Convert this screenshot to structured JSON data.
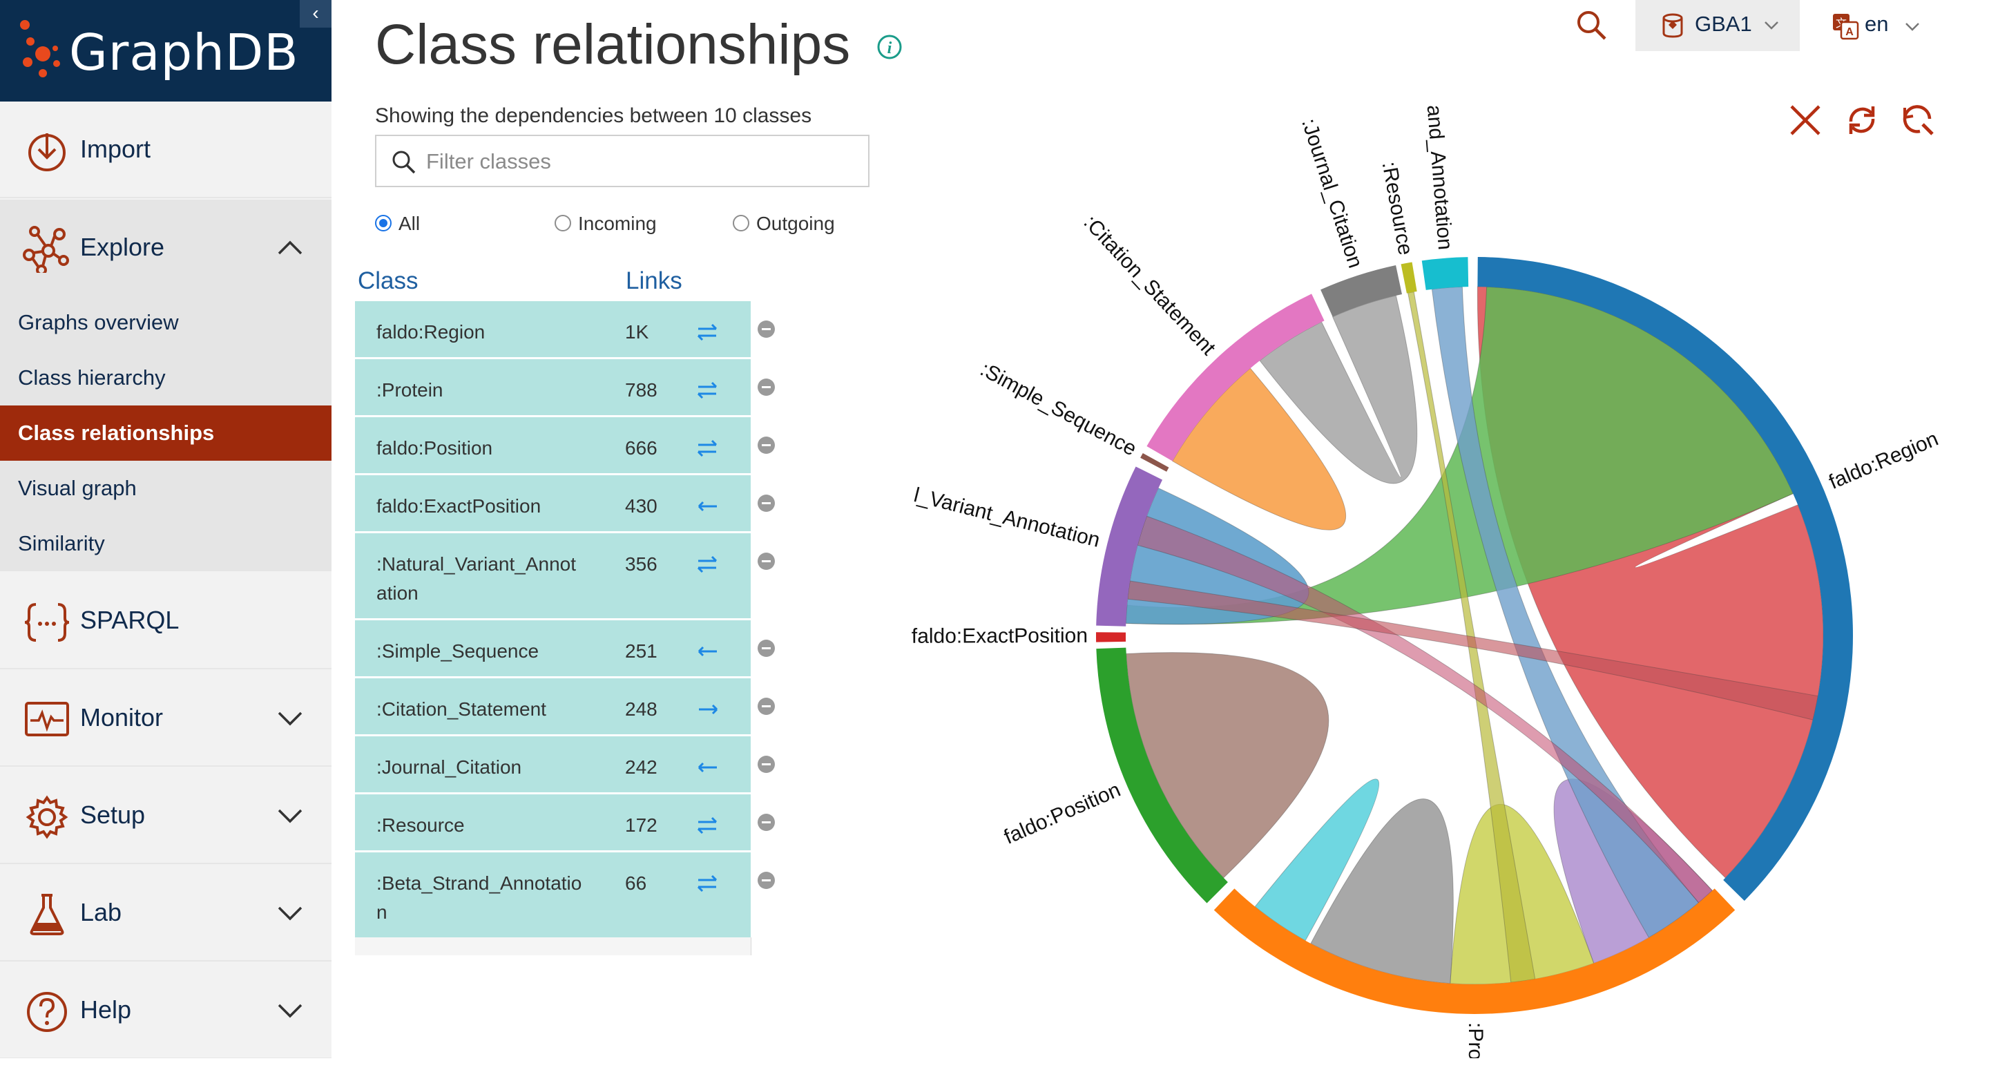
{
  "brand": {
    "name": "GraphDB"
  },
  "sidebar": {
    "items": [
      {
        "label": "Import",
        "icon": "import-icon"
      },
      {
        "label": "Explore",
        "icon": "explore-icon"
      },
      {
        "label": "SPARQL",
        "icon": "sparql-icon"
      },
      {
        "label": "Monitor",
        "icon": "monitor-icon"
      },
      {
        "label": "Setup",
        "icon": "gear-icon"
      },
      {
        "label": "Lab",
        "icon": "flask-icon"
      },
      {
        "label": "Help",
        "icon": "help-icon"
      }
    ],
    "explore_sub": [
      "Graphs overview",
      "Class hierarchy",
      "Class relationships",
      "Visual graph",
      "Similarity"
    ],
    "active_sub": "Class relationships"
  },
  "header": {
    "title": "Class relationships",
    "repository": "GBA1",
    "language": "en"
  },
  "panel": {
    "summary": "Showing the dependencies between 10 classes",
    "filter_placeholder": "Filter classes",
    "filter_value": "",
    "radios": [
      {
        "label": "All",
        "checked": true
      },
      {
        "label": "Incoming",
        "checked": false
      },
      {
        "label": "Outgoing",
        "checked": false
      }
    ],
    "columns": {
      "class": "Class",
      "links": "Links"
    }
  },
  "classes": [
    {
      "name": "faldo:Region",
      "links": "1K",
      "direction": "both"
    },
    {
      "name": ":Protein",
      "links": "788",
      "direction": "both"
    },
    {
      "name": "faldo:Position",
      "links": "666",
      "direction": "both"
    },
    {
      "name": "faldo:ExactPosition",
      "links": "430",
      "direction": "incoming"
    },
    {
      "name": ":Natural_Variant_Annotation",
      "links": "356",
      "direction": "both"
    },
    {
      "name": ":Simple_Sequence",
      "links": "251",
      "direction": "incoming"
    },
    {
      "name": ":Citation_Statement",
      "links": "248",
      "direction": "outgoing"
    },
    {
      "name": ":Journal_Citation",
      "links": "242",
      "direction": "incoming"
    },
    {
      "name": ":Resource",
      "links": "172",
      "direction": "both"
    },
    {
      "name": ":Beta_Strand_Annotation",
      "links": "66",
      "direction": "both"
    }
  ],
  "chart_labels": {
    "region": "faldo:Region",
    "protein": ":Protein",
    "position": "faldo:Position",
    "exact": "faldo:ExactPosition",
    "variant": "l_Variant_Annotation",
    "simple": ":Simple_Sequence",
    "citation": ":Citation_Statement",
    "journal": ":Journal_Citation",
    "resource": ":Resource",
    "beta": "and_Annotation"
  },
  "colors": {
    "brand_bg": "#0b2d4f",
    "active_bg": "#9e2a0c",
    "accent": "#c0392b",
    "row_bg": "#b3e3e0",
    "link_arrow": "#1e88e5"
  }
}
